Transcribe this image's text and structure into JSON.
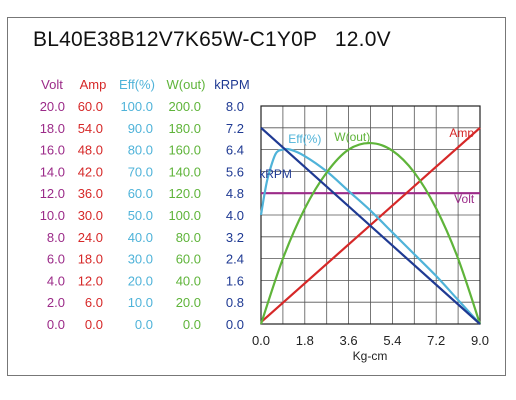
{
  "title": "BL40E38B12V7K65W-C1Y0P   12.0V",
  "chart_data": {
    "type": "line",
    "title": "BL40E38B12V7K65W-C1Y0P   12.0V",
    "xlabel": "Kg-cm",
    "x_ticks": [
      "0.0",
      "1.8",
      "3.6",
      "5.4",
      "7.2",
      "9.0"
    ],
    "xlim": [
      0,
      9.0
    ],
    "grid": true,
    "left_axes": [
      {
        "header": "Volt",
        "color": "#9b2a88",
        "ticks": [
          "0.0",
          "2.0",
          "4.0",
          "6.0",
          "8.0",
          "10.0",
          "12.0",
          "14.0",
          "16.0",
          "18.0",
          "20.0"
        ]
      },
      {
        "header": "Amp",
        "color": "#d62828",
        "ticks": [
          "0.0",
          "6.0",
          "12.0",
          "18.0",
          "24.0",
          "30.0",
          "36.0",
          "42.0",
          "48.0",
          "54.0",
          "60.0"
        ]
      },
      {
        "header": "Eff(%)",
        "color": "#4fb3d9",
        "ticks": [
          "0.0",
          "10.0",
          "20.0",
          "30.0",
          "40.0",
          "50.0",
          "60.0",
          "70.0",
          "80.0",
          "90.0",
          "100.0"
        ]
      },
      {
        "header": "W(out)",
        "color": "#5fb43a",
        "ticks": [
          "0.0",
          "20.0",
          "40.0",
          "60.0",
          "80.0",
          "100.0",
          "120.0",
          "140.0",
          "160.0",
          "180.0",
          "200.0"
        ]
      },
      {
        "header": "kRPM",
        "color": "#1f3a93",
        "ticks": [
          "0.0",
          "0.8",
          "1.6",
          "2.4",
          "3.2",
          "4.0",
          "4.8",
          "5.6",
          "6.4",
          "7.2",
          "8.0"
        ]
      }
    ],
    "series": [
      {
        "name": "Volt",
        "color": "#9b2a88",
        "axis": 0,
        "points": [
          [
            0,
            12.0
          ],
          [
            9.0,
            12.0
          ]
        ]
      },
      {
        "name": "Amp",
        "color": "#d62828",
        "axis": 1,
        "points": [
          [
            0,
            0.5
          ],
          [
            9.0,
            54.0
          ]
        ]
      },
      {
        "name": "Eff(%)",
        "color": "#4fb3d9",
        "axis": 2,
        "points": [
          [
            0,
            50
          ],
          [
            0.15,
            60
          ],
          [
            0.3,
            68
          ],
          [
            0.6,
            78
          ],
          [
            0.9,
            80
          ],
          [
            1.2,
            80
          ],
          [
            1.8,
            77
          ],
          [
            2.7,
            70
          ],
          [
            3.6,
            61
          ],
          [
            4.5,
            52
          ],
          [
            5.4,
            42
          ],
          [
            6.3,
            32
          ],
          [
            7.2,
            22
          ],
          [
            8.1,
            11
          ],
          [
            9.0,
            0
          ]
        ]
      },
      {
        "name": "W(out)",
        "color": "#5fb43a",
        "axis": 3,
        "points": [
          [
            0,
            0
          ],
          [
            0.9,
            60
          ],
          [
            1.8,
            106
          ],
          [
            2.7,
            139
          ],
          [
            3.6,
            160
          ],
          [
            4.5,
            166
          ],
          [
            5.4,
            159
          ],
          [
            6.3,
            139
          ],
          [
            7.2,
            106
          ],
          [
            8.1,
            60
          ],
          [
            9.0,
            0
          ]
        ]
      },
      {
        "name": "kRPM",
        "color": "#1f3a93",
        "axis": 4,
        "points": [
          [
            0,
            7.2
          ],
          [
            9.0,
            0.0
          ]
        ]
      }
    ],
    "labels": [
      {
        "text": "Eff(%)",
        "series": "Eff(%)",
        "at": [
          1.8,
          83
        ]
      },
      {
        "text": "W(out)",
        "series": "W(out)",
        "at": [
          3.75,
          168
        ]
      },
      {
        "text": "Amp",
        "series": "Amp",
        "at": [
          8.25,
          51.5
        ]
      },
      {
        "text": "kRPM",
        "series": "kRPM",
        "at": [
          0.6,
          5.35
        ]
      },
      {
        "text": "Volt",
        "series": "Volt",
        "at": [
          8.35,
          11.1
        ]
      }
    ]
  }
}
